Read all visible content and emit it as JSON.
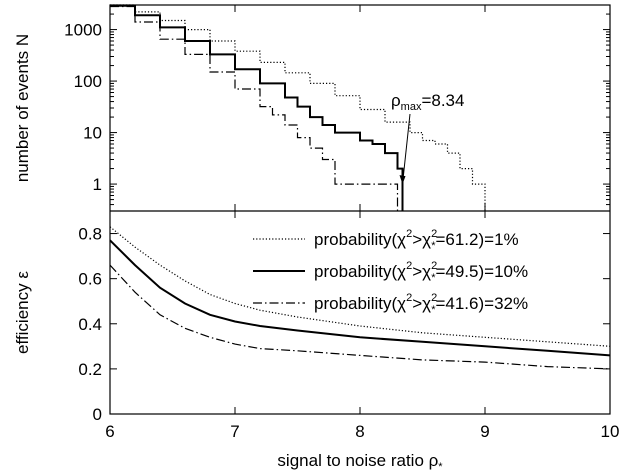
{
  "chart_data": [
    {
      "type": "line",
      "scale_y": "log",
      "ylabel": "number of events N",
      "xlim": [
        6,
        10
      ],
      "ylim": [
        0.3,
        3000
      ],
      "yticks": [
        1,
        10,
        100,
        1000
      ],
      "ytick_labels": [
        "1",
        "10",
        "100",
        "1000"
      ],
      "annotation": {
        "base": "ρ",
        "sub": "max",
        "tail": "=8.34",
        "x": 8.34,
        "y": 1
      },
      "series": [
        {
          "key": "p1",
          "style": "dotted",
          "x": [
            6.0,
            6.2,
            6.4,
            6.6,
            6.8,
            7.0,
            7.2,
            7.4,
            7.6,
            7.8,
            8.0,
            8.2,
            8.4,
            8.5,
            8.6,
            8.7,
            8.8,
            8.9,
            9.0
          ],
          "y": [
            3000,
            2200,
            1500,
            1000,
            600,
            380,
            230,
            145,
            90,
            52,
            28,
            16,
            10,
            7,
            6,
            4,
            2,
            1,
            0.3
          ]
        },
        {
          "key": "p10",
          "style": "solid",
          "x": [
            6.0,
            6.2,
            6.4,
            6.6,
            6.8,
            7.0,
            7.2,
            7.4,
            7.5,
            7.6,
            7.7,
            7.8,
            7.9,
            8.0,
            8.1,
            8.2,
            8.3,
            8.34
          ],
          "y": [
            2900,
            1900,
            1100,
            600,
            330,
            170,
            90,
            48,
            32,
            20,
            14,
            10,
            10,
            7,
            6,
            4,
            2,
            0.3
          ]
        },
        {
          "key": "p32",
          "style": "dashdot",
          "x": [
            6.0,
            6.2,
            6.4,
            6.6,
            6.8,
            7.0,
            7.2,
            7.3,
            7.4,
            7.5,
            7.6,
            7.7,
            7.8,
            7.9,
            8.0,
            8.2,
            8.3
          ],
          "y": [
            2800,
            1400,
            650,
            330,
            150,
            70,
            32,
            22,
            14,
            8,
            5,
            3,
            1,
            1,
            1,
            1,
            0.3
          ]
        }
      ]
    },
    {
      "type": "line",
      "xlabel_base": "signal to noise ratio ρ",
      "xlabel_sub": "*",
      "ylabel_base": "efficiency ",
      "ylabel_sym": "ε",
      "xlim": [
        6,
        10
      ],
      "ylim": [
        0,
        0.9
      ],
      "xticks": [
        6,
        7,
        8,
        9,
        10
      ],
      "xtick_labels": [
        "6",
        "7",
        "8",
        "9",
        "10"
      ],
      "yticks": [
        0,
        0.2,
        0.4,
        0.6,
        0.8
      ],
      "ytick_labels": [
        "0",
        "0.2",
        "0.4",
        "0.6",
        "0.8"
      ],
      "legend_position": "top-right",
      "series": [
        {
          "key": "p1",
          "style": "dotted",
          "x": [
            6.0,
            6.2,
            6.4,
            6.6,
            6.8,
            7.0,
            7.2,
            7.5,
            8.0,
            8.5,
            9.0,
            9.5,
            10.0
          ],
          "y": [
            0.83,
            0.74,
            0.66,
            0.59,
            0.53,
            0.49,
            0.46,
            0.43,
            0.39,
            0.36,
            0.34,
            0.32,
            0.3
          ]
        },
        {
          "key": "p10",
          "style": "solid",
          "x": [
            6.0,
            6.2,
            6.4,
            6.6,
            6.8,
            7.0,
            7.2,
            7.5,
            8.0,
            8.5,
            9.0,
            9.5,
            10.0
          ],
          "y": [
            0.77,
            0.66,
            0.56,
            0.49,
            0.44,
            0.41,
            0.39,
            0.37,
            0.34,
            0.32,
            0.3,
            0.28,
            0.26
          ]
        },
        {
          "key": "p32",
          "style": "dashdot",
          "x": [
            6.0,
            6.2,
            6.4,
            6.6,
            6.8,
            7.0,
            7.2,
            7.5,
            8.0,
            8.5,
            9.0,
            9.5,
            10.0
          ],
          "y": [
            0.66,
            0.54,
            0.44,
            0.38,
            0.34,
            0.31,
            0.29,
            0.28,
            0.26,
            0.24,
            0.23,
            0.21,
            0.2
          ]
        }
      ],
      "legend": [
        {
          "key": "p1",
          "style": "dotted",
          "pre": "probability(χ",
          "mid": ">χ",
          "sub": "*",
          "tail": "=61.2)=1%"
        },
        {
          "key": "p10",
          "style": "solid",
          "pre": "probability(χ",
          "mid": ">χ",
          "sub": "*",
          "tail": "=49.5)=10%"
        },
        {
          "key": "p32",
          "style": "dashdot",
          "pre": "probability(χ",
          "mid": ">χ",
          "sub": "*",
          "tail": "=41.6)=32%"
        }
      ]
    }
  ]
}
